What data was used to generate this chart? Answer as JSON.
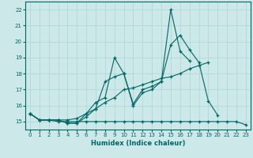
{
  "title": "",
  "xlabel": "Humidex (Indice chaleur)",
  "ylabel": "",
  "xlim": [
    -0.5,
    23.5
  ],
  "ylim": [
    14.5,
    22.5
  ],
  "xticks": [
    0,
    1,
    2,
    3,
    4,
    5,
    6,
    7,
    8,
    9,
    10,
    11,
    12,
    13,
    14,
    15,
    16,
    17,
    18,
    19,
    20,
    21,
    22,
    23
  ],
  "yticks": [
    15,
    16,
    17,
    18,
    19,
    20,
    21,
    22
  ],
  "bg_color": "#cce8e8",
  "line_color": "#006666",
  "grid_color": "#aad4d4",
  "lines": [
    {
      "x": [
        0,
        1,
        2,
        3,
        4,
        5,
        6,
        7,
        8,
        9,
        10,
        11,
        12,
        13,
        14,
        15,
        16,
        17,
        18,
        19,
        20,
        21,
        22,
        23
      ],
      "y": [
        15.5,
        15.1,
        15.1,
        15.0,
        15.0,
        15.0,
        15.0,
        15.0,
        15.0,
        15.0,
        15.0,
        15.0,
        15.0,
        15.0,
        15.0,
        15.0,
        15.0,
        15.0,
        15.0,
        15.0,
        15.0,
        15.0,
        15.0,
        14.8
      ]
    },
    {
      "x": [
        0,
        1,
        2,
        3,
        4,
        5,
        6,
        7,
        8,
        9,
        10,
        11,
        12,
        13,
        14,
        15,
        16,
        17,
        18,
        19,
        20
      ],
      "y": [
        15.5,
        15.1,
        15.1,
        15.1,
        14.9,
        14.9,
        15.5,
        16.2,
        16.5,
        19.0,
        18.0,
        16.1,
        17.0,
        17.2,
        17.5,
        22.0,
        19.4,
        18.8,
        null,
        null,
        null
      ]
    },
    {
      "x": [
        0,
        1,
        2,
        3,
        4,
        5,
        6,
        7,
        8,
        9,
        10,
        11,
        12,
        13,
        14,
        15,
        16,
        17,
        18,
        19,
        20
      ],
      "y": [
        15.5,
        15.1,
        15.1,
        15.1,
        15.1,
        15.2,
        15.5,
        15.8,
        17.5,
        17.8,
        18.0,
        16.0,
        16.8,
        17.0,
        17.5,
        19.8,
        20.4,
        19.5,
        18.7,
        16.3,
        15.4
      ]
    },
    {
      "x": [
        0,
        1,
        2,
        3,
        4,
        5,
        6,
        7,
        8,
        9,
        10,
        11,
        12,
        13,
        14,
        15,
        16,
        17,
        18,
        19,
        20,
        21,
        22,
        23
      ],
      "y": [
        15.5,
        15.1,
        15.1,
        15.1,
        14.9,
        14.9,
        15.3,
        15.8,
        16.2,
        16.5,
        17.0,
        17.1,
        17.3,
        17.5,
        17.7,
        17.8,
        18.0,
        18.3,
        18.5,
        18.7,
        null,
        null,
        null,
        null
      ]
    }
  ]
}
